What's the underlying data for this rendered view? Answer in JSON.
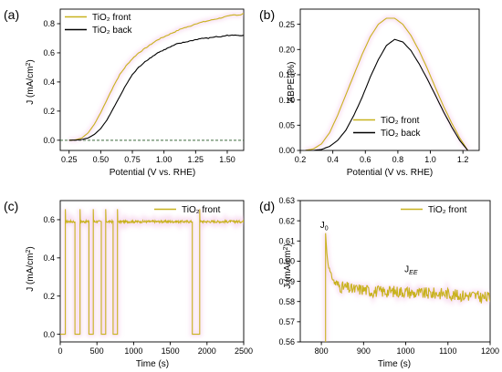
{
  "colors": {
    "front": "#c8b21e",
    "back": "#000000",
    "dashed": "#3d6b3d",
    "glow": "#f4c6e8"
  },
  "chart_data": [
    {
      "panel_label": "(a)",
      "type": "line",
      "xlabel": "Potential (V vs. RHE)",
      "ylabel": "J (mA/cm²)",
      "xlim": [
        0.18,
        1.63
      ],
      "ylim": [
        -0.07,
        0.9
      ],
      "xticks": [
        0.25,
        0.5,
        0.75,
        1.0,
        1.25,
        1.5
      ],
      "xtick_labels": [
        "0.25",
        "0.50",
        "0.75",
        "1.00",
        "1.25",
        "1.50"
      ],
      "yticks": [
        0.0,
        0.2,
        0.4,
        0.6,
        0.8
      ],
      "ytick_labels": [
        "0.0",
        "0.2",
        "0.4",
        "0.6",
        "0.8"
      ],
      "legend_position": "top-left",
      "series": [
        {
          "name": "TiO₂ front",
          "color": "front",
          "x": [
            0.25,
            0.3,
            0.35,
            0.4,
            0.45,
            0.5,
            0.55,
            0.6,
            0.65,
            0.7,
            0.75,
            0.8,
            0.85,
            0.9,
            0.95,
            1.0,
            1.05,
            1.1,
            1.15,
            1.2,
            1.25,
            1.3,
            1.35,
            1.4,
            1.45,
            1.5,
            1.55,
            1.6,
            1.63
          ],
          "y": [
            0.0,
            0.003,
            0.015,
            0.05,
            0.11,
            0.19,
            0.28,
            0.37,
            0.45,
            0.51,
            0.56,
            0.6,
            0.63,
            0.66,
            0.69,
            0.71,
            0.73,
            0.75,
            0.77,
            0.78,
            0.8,
            0.81,
            0.82,
            0.83,
            0.84,
            0.85,
            0.86,
            0.86,
            0.87
          ]
        },
        {
          "name": "TiO₂ back",
          "color": "back",
          "x": [
            0.25,
            0.3,
            0.35,
            0.4,
            0.45,
            0.5,
            0.55,
            0.6,
            0.65,
            0.7,
            0.75,
            0.8,
            0.85,
            0.9,
            0.95,
            1.0,
            1.05,
            1.1,
            1.15,
            1.2,
            1.25,
            1.3,
            1.35,
            1.4,
            1.45,
            1.5,
            1.55,
            1.6,
            1.63
          ],
          "y": [
            0.0,
            0.001,
            0.005,
            0.015,
            0.04,
            0.08,
            0.14,
            0.22,
            0.3,
            0.38,
            0.45,
            0.5,
            0.54,
            0.57,
            0.6,
            0.62,
            0.64,
            0.66,
            0.67,
            0.68,
            0.69,
            0.7,
            0.7,
            0.71,
            0.71,
            0.72,
            0.72,
            0.72,
            0.72
          ]
        }
      ],
      "baseline_dashed": {
        "y": 0.0
      }
    },
    {
      "panel_label": "(b)",
      "type": "line",
      "xlabel": "Potential (V vs. RHE)",
      "ylabel": "ABPE (%)",
      "xlim": [
        0.2,
        1.3
      ],
      "ylim": [
        0.0,
        0.28
      ],
      "xticks": [
        0.2,
        0.4,
        0.6,
        0.8,
        1.0,
        1.2
      ],
      "xtick_labels": [
        "0.2",
        "0.4",
        "0.6",
        "0.8",
        "1.0",
        "1.2"
      ],
      "yticks": [
        0.0,
        0.05,
        0.1,
        0.15,
        0.2,
        0.25
      ],
      "ytick_labels": [
        "0.00",
        "0.05",
        "0.10",
        "0.15",
        "0.20",
        "0.25"
      ],
      "legend_position": "bottom-left",
      "series": [
        {
          "name": "TiO₂ front",
          "color": "front",
          "x": [
            0.23,
            0.28,
            0.33,
            0.38,
            0.43,
            0.48,
            0.53,
            0.58,
            0.63,
            0.68,
            0.73,
            0.78,
            0.83,
            0.88,
            0.93,
            0.98,
            1.03,
            1.08,
            1.13,
            1.18,
            1.23
          ],
          "y": [
            0.0,
            0.003,
            0.013,
            0.035,
            0.07,
            0.11,
            0.15,
            0.19,
            0.225,
            0.25,
            0.262,
            0.262,
            0.25,
            0.228,
            0.198,
            0.163,
            0.125,
            0.088,
            0.055,
            0.025,
            0.0
          ]
        },
        {
          "name": "TiO₂ back",
          "color": "back",
          "x": [
            0.23,
            0.28,
            0.33,
            0.38,
            0.43,
            0.48,
            0.53,
            0.58,
            0.63,
            0.68,
            0.73,
            0.78,
            0.83,
            0.88,
            0.93,
            0.98,
            1.03,
            1.08,
            1.13,
            1.18,
            1.23
          ],
          "y": [
            0.0,
            0.0,
            0.002,
            0.008,
            0.02,
            0.04,
            0.07,
            0.105,
            0.145,
            0.18,
            0.208,
            0.22,
            0.215,
            0.198,
            0.172,
            0.142,
            0.11,
            0.077,
            0.047,
            0.02,
            0.0
          ]
        }
      ]
    },
    {
      "panel_label": "(c)",
      "type": "line",
      "xlabel": "Time (s)",
      "ylabel": "J (mA/cm²)",
      "xlim": [
        0,
        2500
      ],
      "ylim": [
        -0.04,
        0.7
      ],
      "xticks": [
        0,
        500,
        1000,
        1500,
        2000,
        2500
      ],
      "xtick_labels": [
        "0",
        "500",
        "1000",
        "1500",
        "2000",
        "2500"
      ],
      "yticks": [
        0.0,
        0.2,
        0.4,
        0.6
      ],
      "ytick_labels": [
        "0.0",
        "0.2",
        "0.4",
        "0.6"
      ],
      "legend_position": "top-right",
      "series": [
        {
          "name": "TiO₂ front",
          "color": "front",
          "level": 0.59,
          "on_intervals": [
            [
              70,
              200
            ],
            [
              270,
              390
            ],
            [
              450,
              560
            ],
            [
              620,
              720
            ],
            [
              780,
              1800
            ],
            [
              1900,
              2500
            ]
          ],
          "spike_value": 0.655
        }
      ]
    },
    {
      "panel_label": "(d)",
      "type": "line",
      "xlabel": "Time (s)",
      "ylabel": "J (mA/cm²)",
      "xlim": [
        750,
        1200
      ],
      "ylim": [
        0.56,
        0.63
      ],
      "xticks": [
        800,
        900,
        1000,
        1100,
        1200
      ],
      "xtick_labels": [
        "800",
        "900",
        "1000",
        "1100",
        "1200"
      ],
      "yticks": [
        0.56,
        0.57,
        0.58,
        0.59,
        0.6,
        0.61,
        0.62,
        0.63
      ],
      "ytick_labels": [
        "0.56",
        "0.57",
        "0.58",
        "0.59",
        "0.60",
        "0.61",
        "0.62",
        "0.63"
      ],
      "legend_position": "top-right",
      "annotations": [
        {
          "text": "J",
          "sub": "0",
          "x": 810,
          "y": 0.6165
        },
        {
          "text": "J",
          "sub": "EE",
          "x": 1010,
          "y": 0.5945
        }
      ],
      "series": [
        {
          "name": "TiO₂ front",
          "color": "front",
          "x": [
            810,
            812,
            815,
            820,
            825,
            830,
            840,
            850,
            860,
            870,
            880,
            900,
            920,
            940,
            960,
            980,
            1000,
            1020,
            1040,
            1060,
            1080,
            1100,
            1120,
            1140,
            1160,
            1180,
            1200
          ],
          "y": [
            0.614,
            0.607,
            0.6,
            0.595,
            0.592,
            0.59,
            0.588,
            0.587,
            0.587,
            0.586,
            0.586,
            0.586,
            0.585,
            0.585,
            0.585,
            0.585,
            0.585,
            0.584,
            0.584,
            0.584,
            0.584,
            0.584,
            0.583,
            0.583,
            0.583,
            0.582,
            0.582
          ]
        }
      ]
    }
  ]
}
